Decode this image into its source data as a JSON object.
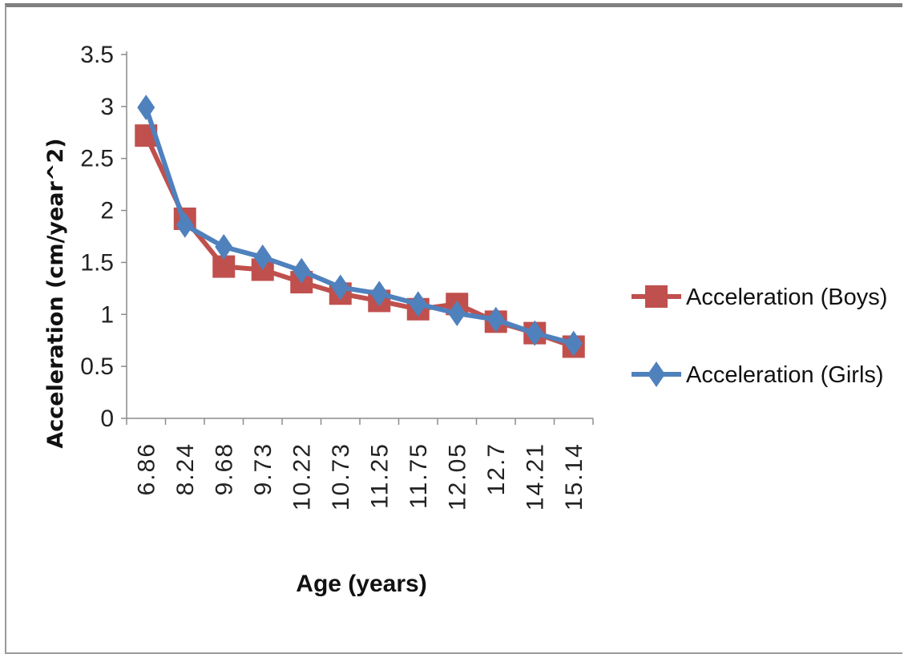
{
  "chart_data": {
    "type": "line",
    "title": "",
    "xlabel": "Age (years)",
    "ylabel": "Acceleration (cm/year^2)",
    "categories": [
      "6.86",
      "8.24",
      "9.68",
      "9.73",
      "10.22",
      "10.73",
      "11.25",
      "11.75",
      "12.05",
      "12.7",
      "14.21",
      "15.14"
    ],
    "ylim": [
      0,
      3.5
    ],
    "yticks": [
      "0",
      "0.5",
      "1",
      "1.5",
      "2",
      "2.5",
      "3",
      "3.5"
    ],
    "legend_position": "right",
    "grid": false,
    "series": [
      {
        "name": "Acceleration (Boys)",
        "marker": "square",
        "color": "#c0504d",
        "values": [
          2.72,
          1.92,
          1.46,
          1.43,
          1.31,
          1.2,
          1.13,
          1.05,
          1.1,
          0.93,
          0.82,
          0.69
        ]
      },
      {
        "name": "Acceleration (Girls)",
        "marker": "diamond",
        "color": "#4f81bd",
        "values": [
          2.99,
          1.86,
          1.65,
          1.55,
          1.42,
          1.26,
          1.2,
          1.1,
          1.01,
          0.95,
          0.82,
          0.72
        ]
      }
    ]
  }
}
